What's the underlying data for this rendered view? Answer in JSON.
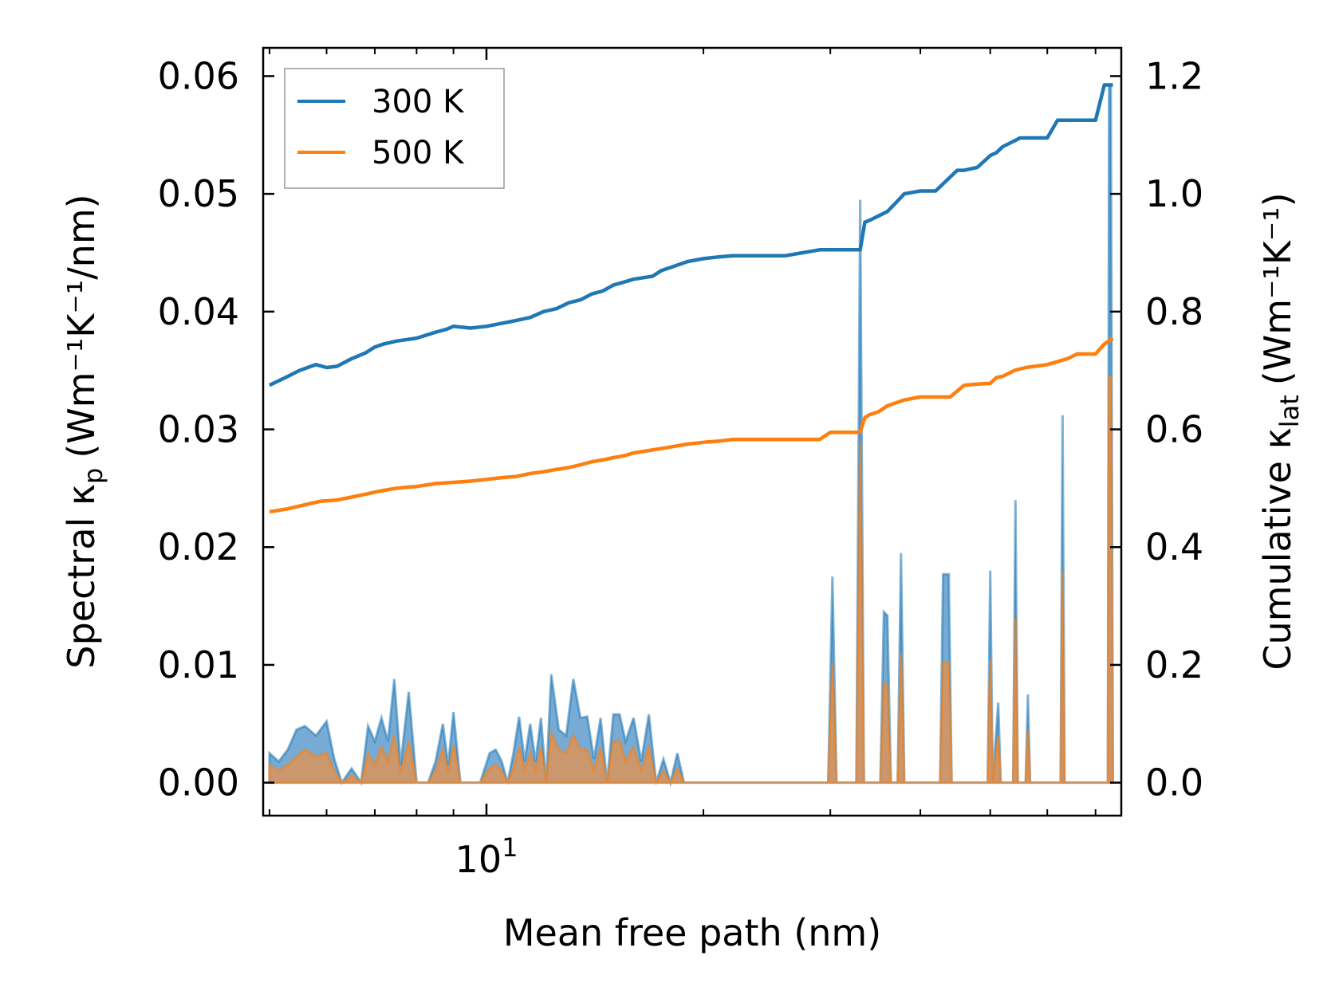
{
  "chart_data": {
    "type": "line",
    "title": "",
    "xlabel": "Mean free path (nm)",
    "xscale": "log",
    "xlim": [
      4.9,
      76
    ],
    "x_major_tick_labels": [
      {
        "value": 10,
        "base": "10",
        "exp": "1"
      }
    ],
    "ylabel_left": {
      "main": "Spectral κ",
      "sub": "p",
      "unit": "(Wm⁻¹K⁻¹/nm)"
    },
    "ylabel_right": {
      "main": "Cumulative κ",
      "sub": "lat",
      "unit": "(Wm⁻¹K⁻¹)"
    },
    "ylim_left": [
      -0.0028,
      0.0624
    ],
    "ylim_right": [
      -0.056,
      1.248
    ],
    "yticks_left": [
      "0.00",
      "0.01",
      "0.02",
      "0.03",
      "0.04",
      "0.05",
      "0.06"
    ],
    "yticks_left_values": [
      0,
      0.01,
      0.02,
      0.03,
      0.04,
      0.05,
      0.06
    ],
    "yticks_right": [
      "0.0",
      "0.2",
      "0.4",
      "0.6",
      "0.8",
      "1.0",
      "1.2"
    ],
    "yticks_right_values": [
      0,
      0.2,
      0.4,
      0.6,
      0.8,
      1.0,
      1.2
    ],
    "legend": {
      "position": "upper-left",
      "entries": [
        "300 K",
        "500 K"
      ]
    },
    "colors": {
      "300 K": "#1f77b4",
      "500 K": "#ff7f0e",
      "fill_300": "#4a8fc4",
      "fill_500": "#d9935a"
    },
    "series": [
      {
        "name": "300 K",
        "axis": "right",
        "kind": "cumulative",
        "x": [
          5.0,
          5.3,
          5.5,
          5.8,
          6.0,
          6.2,
          6.5,
          6.8,
          7.0,
          7.2,
          7.5,
          7.7,
          8.0,
          8.5,
          8.8,
          9.0,
          9.5,
          10.0,
          10.5,
          11.0,
          11.5,
          12.0,
          12.5,
          13.0,
          13.5,
          14.0,
          14.5,
          15.0,
          15.5,
          16.0,
          17.0,
          17.5,
          18.0,
          19.0,
          20.0,
          21.0,
          22.0,
          24.0,
          26.0,
          29.0,
          30.0,
          33.0,
          33.5,
          34.0,
          36.0,
          37.0,
          38.0,
          40.0,
          42.0,
          45.0,
          46.0,
          48.0,
          50.0,
          51.0,
          52.0,
          54.0,
          55.0,
          57.0,
          60.0,
          62.0,
          64.0,
          65.0,
          68.0,
          70.0,
          72.0,
          73.0,
          74.0
        ],
        "y": [
          0.675,
          0.69,
          0.7,
          0.71,
          0.705,
          0.707,
          0.72,
          0.73,
          0.74,
          0.745,
          0.75,
          0.752,
          0.755,
          0.765,
          0.77,
          0.775,
          0.772,
          0.775,
          0.78,
          0.785,
          0.79,
          0.8,
          0.805,
          0.815,
          0.82,
          0.83,
          0.835,
          0.845,
          0.85,
          0.855,
          0.86,
          0.87,
          0.875,
          0.885,
          0.89,
          0.893,
          0.895,
          0.895,
          0.895,
          0.905,
          0.905,
          0.905,
          0.952,
          0.955,
          0.97,
          0.985,
          1.0,
          1.005,
          1.005,
          1.04,
          1.04,
          1.045,
          1.065,
          1.07,
          1.08,
          1.09,
          1.095,
          1.095,
          1.095,
          1.125,
          1.125,
          1.125,
          1.125,
          1.125,
          1.185,
          1.185,
          1.185
        ]
      },
      {
        "name": "500 K",
        "axis": "right",
        "kind": "cumulative",
        "x": [
          5.0,
          5.3,
          5.6,
          5.9,
          6.2,
          6.5,
          6.8,
          7.1,
          7.5,
          7.8,
          8.0,
          8.5,
          9.0,
          9.5,
          10.0,
          10.5,
          11.0,
          11.5,
          12.0,
          12.5,
          13.0,
          13.5,
          14.0,
          14.5,
          15.0,
          15.5,
          16.0,
          17.0,
          18.0,
          19.0,
          20.0,
          21.0,
          22.0,
          24.0,
          26.0,
          29.0,
          30.0,
          33.0,
          33.5,
          34.0,
          35.0,
          36.0,
          38.0,
          40.0,
          42.0,
          44.0,
          46.0,
          48.0,
          50.0,
          51.0,
          52.0,
          54.0,
          56.0,
          60.0,
          62.0,
          64.0,
          66.0,
          70.0,
          72.0,
          73.0,
          74.0
        ],
        "y": [
          0.46,
          0.465,
          0.472,
          0.478,
          0.48,
          0.485,
          0.49,
          0.495,
          0.5,
          0.502,
          0.503,
          0.508,
          0.51,
          0.512,
          0.515,
          0.518,
          0.52,
          0.525,
          0.528,
          0.532,
          0.535,
          0.54,
          0.545,
          0.548,
          0.552,
          0.555,
          0.56,
          0.565,
          0.57,
          0.575,
          0.578,
          0.58,
          0.583,
          0.583,
          0.583,
          0.583,
          0.595,
          0.595,
          0.62,
          0.625,
          0.63,
          0.64,
          0.65,
          0.655,
          0.655,
          0.655,
          0.675,
          0.677,
          0.678,
          0.688,
          0.69,
          0.7,
          0.705,
          0.71,
          0.715,
          0.72,
          0.728,
          0.728,
          0.745,
          0.75,
          0.755
        ]
      },
      {
        "name": "300 K spectral",
        "axis": "left",
        "kind": "spectral-fill",
        "x": [
          5.0,
          5.15,
          5.3,
          5.45,
          5.6,
          5.8,
          6.0,
          6.15,
          6.3,
          6.5,
          6.7,
          6.85,
          7.0,
          7.15,
          7.3,
          7.45,
          7.6,
          7.8,
          8.0,
          8.3,
          8.5,
          8.7,
          8.85,
          9.0,
          9.2,
          9.5,
          9.8,
          10.1,
          10.3,
          10.5,
          10.7,
          10.9,
          11.1,
          11.3,
          11.5,
          11.7,
          11.9,
          12.1,
          12.3,
          12.6,
          12.9,
          13.2,
          13.5,
          13.8,
          14.1,
          14.4,
          14.7,
          15.0,
          15.3,
          15.6,
          16.0,
          16.4,
          16.8,
          17.2,
          17.6,
          18.0,
          18.4,
          18.8,
          19.2,
          19.6,
          20.0,
          20.4,
          20.8,
          21.2,
          21.6,
          22.0,
          22.4,
          23.5,
          29.8,
          30.2,
          30.6,
          31.0,
          32.6,
          33.0,
          33.4,
          33.8,
          35.2,
          35.6,
          36.0,
          36.4,
          37.2,
          37.6,
          38.0,
          38.4,
          40.0,
          42.6,
          43.0,
          43.8,
          44.2,
          49.6,
          50.0,
          50.4,
          51.3,
          51.7,
          52.1,
          53.8,
          54.2,
          54.6,
          56.0,
          56.4,
          56.8,
          62.6,
          63.0,
          63.4,
          72.8,
          73.1,
          73.5,
          74.0
        ],
        "y": [
          0.0025,
          0.0018,
          0.0028,
          0.0045,
          0.0048,
          0.004,
          0.0052,
          0.002,
          0.0,
          0.0012,
          0.0,
          0.0048,
          0.0035,
          0.0055,
          0.0035,
          0.0088,
          0.0015,
          0.0077,
          0.0,
          0.0,
          0.0018,
          0.005,
          0.0015,
          0.006,
          0.0,
          0.0,
          0.0,
          0.0025,
          0.0028,
          0.0018,
          0.0,
          0.0025,
          0.0056,
          0.0018,
          0.005,
          0.0018,
          0.0055,
          0.0,
          0.0092,
          0.0045,
          0.004,
          0.0088,
          0.0055,
          0.0056,
          0.002,
          0.0055,
          0.0,
          0.0058,
          0.0058,
          0.0035,
          0.0055,
          0.0018,
          0.0058,
          0.0,
          0.002,
          0.0,
          0.0025,
          0.0,
          0.0,
          0.0,
          0.0,
          0.0,
          0.0,
          0.0,
          0.0,
          0.0,
          0.0,
          0.0,
          0.0,
          0.0175,
          0.0,
          0.0,
          0.0,
          0.0495,
          0.0,
          0.0,
          0.0,
          0.0145,
          0.0142,
          0.0,
          0.0,
          0.0195,
          0.0,
          0.0,
          0.0,
          0.0,
          0.0177,
          0.0177,
          0.0,
          0.0,
          0.018,
          0.0,
          0.0068,
          0.0,
          0.0,
          0.0,
          0.024,
          0.0,
          0.0,
          0.0075,
          0.0,
          0.0,
          0.0312,
          0.0,
          0.0,
          0.0592,
          0.0592,
          0.0
        ]
      },
      {
        "name": "500 K spectral",
        "axis": "left",
        "kind": "spectral-fill",
        "x": [
          5.0,
          5.15,
          5.3,
          5.45,
          5.6,
          5.8,
          6.0,
          6.15,
          6.3,
          6.5,
          6.7,
          6.85,
          7.0,
          7.15,
          7.3,
          7.45,
          7.6,
          7.8,
          8.0,
          8.3,
          8.5,
          8.7,
          8.85,
          9.0,
          9.2,
          9.5,
          9.8,
          10.1,
          10.3,
          10.5,
          10.7,
          10.9,
          11.1,
          11.3,
          11.5,
          11.7,
          11.9,
          12.1,
          12.3,
          12.6,
          12.9,
          13.2,
          13.5,
          13.8,
          14.1,
          14.4,
          14.7,
          15.0,
          15.3,
          15.6,
          16.0,
          16.4,
          16.8,
          17.2,
          17.6,
          18.0,
          18.4,
          18.8,
          19.2,
          19.6,
          20.0,
          20.4,
          20.8,
          21.2,
          21.6,
          22.0,
          22.4,
          23.5,
          29.8,
          30.2,
          30.6,
          31.0,
          32.6,
          33.0,
          33.4,
          33.8,
          35.2,
          35.6,
          36.0,
          36.4,
          37.2,
          37.6,
          38.0,
          38.4,
          40.0,
          42.6,
          43.0,
          43.8,
          44.2,
          49.6,
          50.0,
          50.4,
          51.3,
          51.7,
          52.1,
          53.8,
          54.2,
          54.6,
          56.0,
          56.4,
          56.8,
          62.6,
          63.0,
          63.4,
          72.8,
          73.1,
          73.5,
          74.0
        ],
        "y": [
          0.0015,
          0.001,
          0.0015,
          0.0022,
          0.0028,
          0.0022,
          0.0025,
          0.001,
          0.0,
          0.0006,
          0.0,
          0.0025,
          0.0015,
          0.003,
          0.0018,
          0.004,
          0.0008,
          0.0035,
          0.0,
          0.0,
          0.001,
          0.0028,
          0.0008,
          0.0032,
          0.0,
          0.0,
          0.0,
          0.0012,
          0.0015,
          0.001,
          0.0,
          0.0012,
          0.003,
          0.001,
          0.0025,
          0.001,
          0.003,
          0.0,
          0.0042,
          0.0028,
          0.0025,
          0.004,
          0.0028,
          0.0028,
          0.001,
          0.003,
          0.0,
          0.0035,
          0.0035,
          0.0018,
          0.003,
          0.001,
          0.003,
          0.0,
          0.001,
          0.0,
          0.0012,
          0.0,
          0.0,
          0.0,
          0.0,
          0.0,
          0.0,
          0.0,
          0.0,
          0.0,
          0.0,
          0.0,
          0.0,
          0.0102,
          0.0,
          0.0,
          0.0,
          0.029,
          0.0,
          0.0,
          0.0,
          0.0085,
          0.0082,
          0.0,
          0.0,
          0.011,
          0.0,
          0.0,
          0.0,
          0.0,
          0.0102,
          0.0102,
          0.0,
          0.0,
          0.0105,
          0.0,
          0.004,
          0.0,
          0.0,
          0.0,
          0.014,
          0.0,
          0.0,
          0.0045,
          0.0,
          0.0,
          0.018,
          0.0,
          0.0,
          0.0345,
          0.0345,
          0.0
        ]
      }
    ]
  }
}
